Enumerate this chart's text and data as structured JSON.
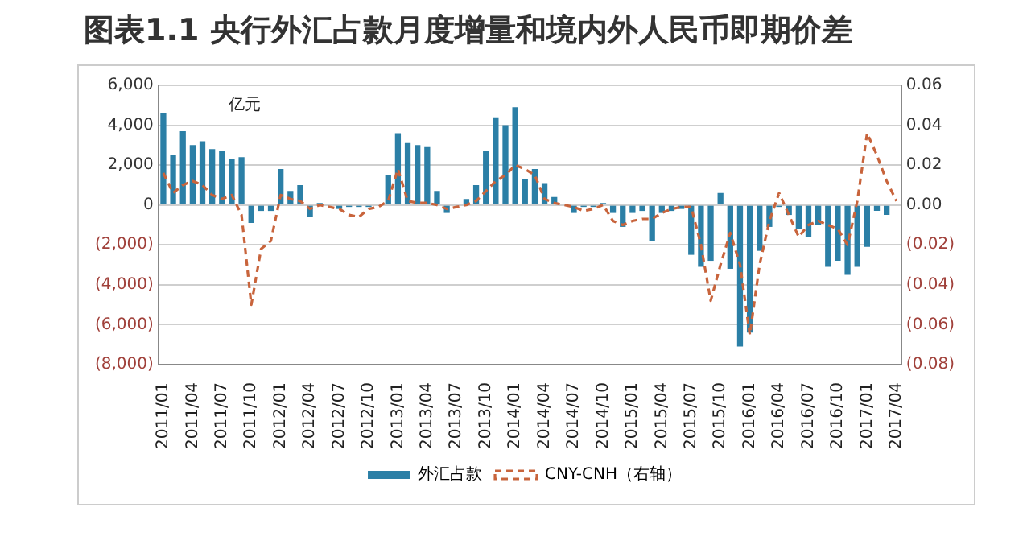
{
  "chart_data": {
    "type": "bar",
    "title": "图表1.1  央行外汇占款月度增量和境内外人民币即期价差",
    "categories": [
      "2011/01",
      null,
      null,
      "2011/04",
      null,
      null,
      "2011/07",
      null,
      null,
      "2011/10",
      null,
      null,
      "2012/01",
      null,
      null,
      "2012/04",
      null,
      null,
      "2012/07",
      null,
      null,
      "2012/10",
      null,
      null,
      "2013/01",
      null,
      null,
      "2013/04",
      null,
      null,
      "2013/07",
      null,
      null,
      "2013/10",
      null,
      null,
      "2014/01",
      null,
      null,
      "2014/04",
      null,
      null,
      "2014/07",
      null,
      null,
      "2014/10",
      null,
      null,
      "2015/01",
      null,
      null,
      "2015/04",
      null,
      null,
      "2015/07",
      null,
      null,
      "2015/10",
      null,
      null,
      "2016/01",
      null,
      null,
      "2016/04",
      null,
      null,
      "2016/07",
      null,
      null,
      "2016/10",
      null,
      null,
      "2017/01",
      null,
      null,
      "2017/04"
    ],
    "series": [
      {
        "name": "外汇占款",
        "color": "#2b7fa6",
        "values": [
          4600,
          2500,
          3700,
          3000,
          3200,
          2800,
          2700,
          2300,
          2400,
          -900,
          -300,
          -300,
          1800,
          700,
          1000,
          -600,
          100,
          null,
          -200,
          -100,
          -100,
          -100,
          0,
          1500,
          3600,
          3100,
          3000,
          2900,
          700,
          -400,
          null,
          300,
          1000,
          2700,
          4400,
          4000,
          4900,
          1300,
          1800,
          1100,
          400,
          0,
          -400,
          -100,
          -100,
          100,
          -400,
          -1100,
          -400,
          -300,
          -1800,
          -400,
          -300,
          -200,
          -2500,
          -3100,
          -2800,
          600,
          -3200,
          -7100,
          -6400,
          -2300,
          -1100,
          -100,
          -500,
          -1200,
          -1600,
          -1000,
          -3100,
          -2800,
          -3500,
          -3100,
          -2100,
          -300,
          -500,
          null
        ]
      },
      {
        "name": "CNY-CNH（右轴）",
        "type": "line",
        "axis": "y2",
        "color": "#c8643c",
        "line_style": "dashed",
        "marker": "none",
        "values": [
          0.016,
          0.006,
          0.01,
          0.012,
          0.01,
          0.005,
          0.003,
          0.005,
          -0.005,
          -0.05,
          -0.022,
          -0.018,
          0.005,
          0.003,
          0.002,
          -0.002,
          0,
          -0.001,
          -0.002,
          -0.005,
          -0.006,
          -0.002,
          -0.001,
          0.002,
          0.018,
          0.002,
          0.001,
          0.001,
          0,
          -0.002,
          -0.001,
          0,
          0.002,
          0.007,
          0.012,
          0.015,
          0.02,
          0.018,
          0.015,
          0.003,
          0.001,
          0,
          -0.001,
          -0.003,
          -0.002,
          0,
          -0.008,
          -0.01,
          -0.008,
          -0.007,
          -0.007,
          -0.004,
          -0.002,
          -0.001,
          -0.001,
          -0.02,
          -0.048,
          -0.03,
          -0.014,
          -0.03,
          -0.065,
          -0.03,
          -0.008,
          0.006,
          -0.005,
          -0.016,
          -0.01,
          -0.008,
          -0.01,
          -0.012,
          -0.02,
          0.002,
          0.036,
          0.025,
          0.012,
          0.002
        ]
      }
    ],
    "ylim": [
      -8000,
      6000
    ],
    "yticks": [
      {
        "value": -8000,
        "label": "(8,000)"
      },
      {
        "value": -6000,
        "label": "(6,000)"
      },
      {
        "value": -4000,
        "label": "(4,000)"
      },
      {
        "value": -2000,
        "label": "(2,000)"
      },
      0,
      {
        "value": 2000,
        "label": "2,000"
      },
      {
        "value": 4000,
        "label": "4,000"
      },
      {
        "value": 6000,
        "label": "6,000"
      }
    ],
    "y2lim": [
      -0.08,
      0.06
    ],
    "y2ticks": [
      {
        "value": -0.08,
        "label": "(0.08)"
      },
      {
        "value": -0.06,
        "label": "(0.06)"
      },
      {
        "value": -0.04,
        "label": "(0.04)"
      },
      {
        "value": -0.02,
        "label": "(0.02)"
      },
      {
        "value": 0,
        "label": "0.00"
      },
      {
        "value": 0.02,
        "label": "0.02"
      },
      {
        "value": 0.04,
        "label": "0.04"
      },
      {
        "value": 0.06,
        "label": "0.06"
      }
    ],
    "annotations": [
      "亿元"
    ],
    "grid": "y",
    "legend": "bottom"
  }
}
